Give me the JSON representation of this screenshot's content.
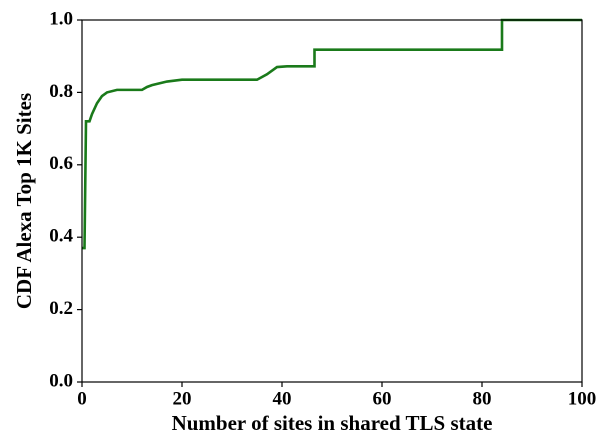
{
  "chart_data": {
    "type": "line",
    "xlabel": "Number of sites in shared TLS state",
    "ylabel": "CDF Alexa Top 1K Sites",
    "x": [
      0,
      0.5,
      0.8,
      1.5,
      2,
      3,
      4,
      5,
      7,
      12,
      13,
      14,
      17,
      20,
      35,
      37,
      39,
      41,
      46.5,
      46.5,
      84,
      84,
      100
    ],
    "series": [
      {
        "name": "CDF",
        "color": "#1a7a1a",
        "values": [
          0.37,
          0.37,
          0.72,
          0.72,
          0.74,
          0.77,
          0.79,
          0.8,
          0.807,
          0.807,
          0.815,
          0.82,
          0.83,
          0.835,
          0.835,
          0.85,
          0.87,
          0.872,
          0.872,
          0.918,
          0.918,
          1.0,
          1.0
        ]
      }
    ],
    "xlim": [
      0,
      100
    ],
    "xticks": [
      0,
      20,
      40,
      60,
      80,
      100
    ],
    "ylim": [
      0,
      1.0
    ],
    "yticks": [
      {
        "value": 0,
        "label": "0.0"
      },
      {
        "value": 0.2,
        "label": "0.2"
      },
      {
        "value": 0.4,
        "label": "0.4"
      },
      {
        "value": 0.6,
        "label": "0.6"
      },
      {
        "value": 0.8,
        "label": "0.8"
      },
      {
        "value": 1.0,
        "label": "1.0"
      }
    ],
    "grid": false
  }
}
